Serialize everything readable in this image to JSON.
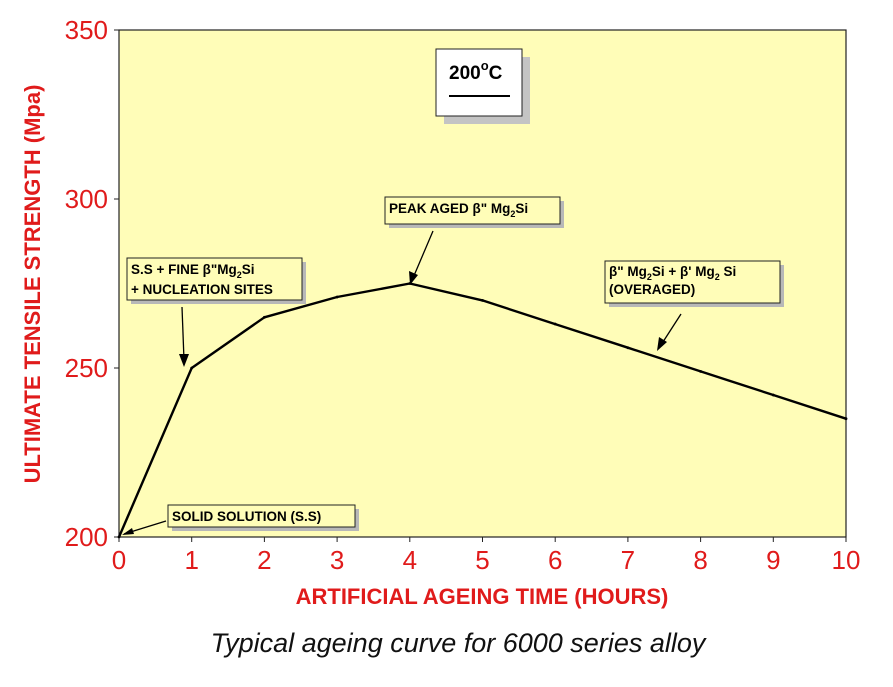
{
  "chart_data": {
    "type": "line",
    "xlabel": "ARTIFICIAL AGEING TIME (HOURS)",
    "ylabel": "ULTIMATE TENSILE STRENGTH (Mpa)",
    "xlim": [
      0,
      10
    ],
    "ylim": [
      200,
      350
    ],
    "xticks": [
      "0",
      "1",
      "2",
      "3",
      "4",
      "5",
      "6",
      "7",
      "8",
      "9",
      "10"
    ],
    "yticks": [
      "200",
      "250",
      "300",
      "350"
    ],
    "grid": false,
    "background_color": "#fffdb8",
    "axis_text_color": "#e01b1b",
    "line_color": "#000000",
    "series": [
      {
        "x": [
          0,
          1,
          2,
          3,
          4,
          5,
          6,
          7,
          8,
          9,
          10
        ],
        "y": [
          200,
          250,
          265,
          271,
          275,
          270,
          263,
          256,
          249,
          242,
          235
        ]
      }
    ],
    "temperature_label": {
      "value": "200",
      "superscript": "o",
      "unit": "C"
    },
    "annotations": {
      "solid_solution": "SOLID SOLUTION (S.S)",
      "fine_line1_pre": "S.S + FINE  β\"Mg",
      "fine_line1_sub": "2",
      "fine_line1_post": "Si",
      "fine_line2": "+ NUCLEATION SITES",
      "peak_pre": "PEAK AGED  β\"  Mg",
      "peak_sub": "2",
      "peak_post": "Si",
      "over_a": "β\" Mg",
      "over_sub1": "2",
      "over_b": "Si + β' Mg",
      "over_sub2": "2",
      "over_c": " Si",
      "over_line2": "(OVERAGED)"
    }
  },
  "caption": "Typical ageing curve for 6000 series alloy"
}
